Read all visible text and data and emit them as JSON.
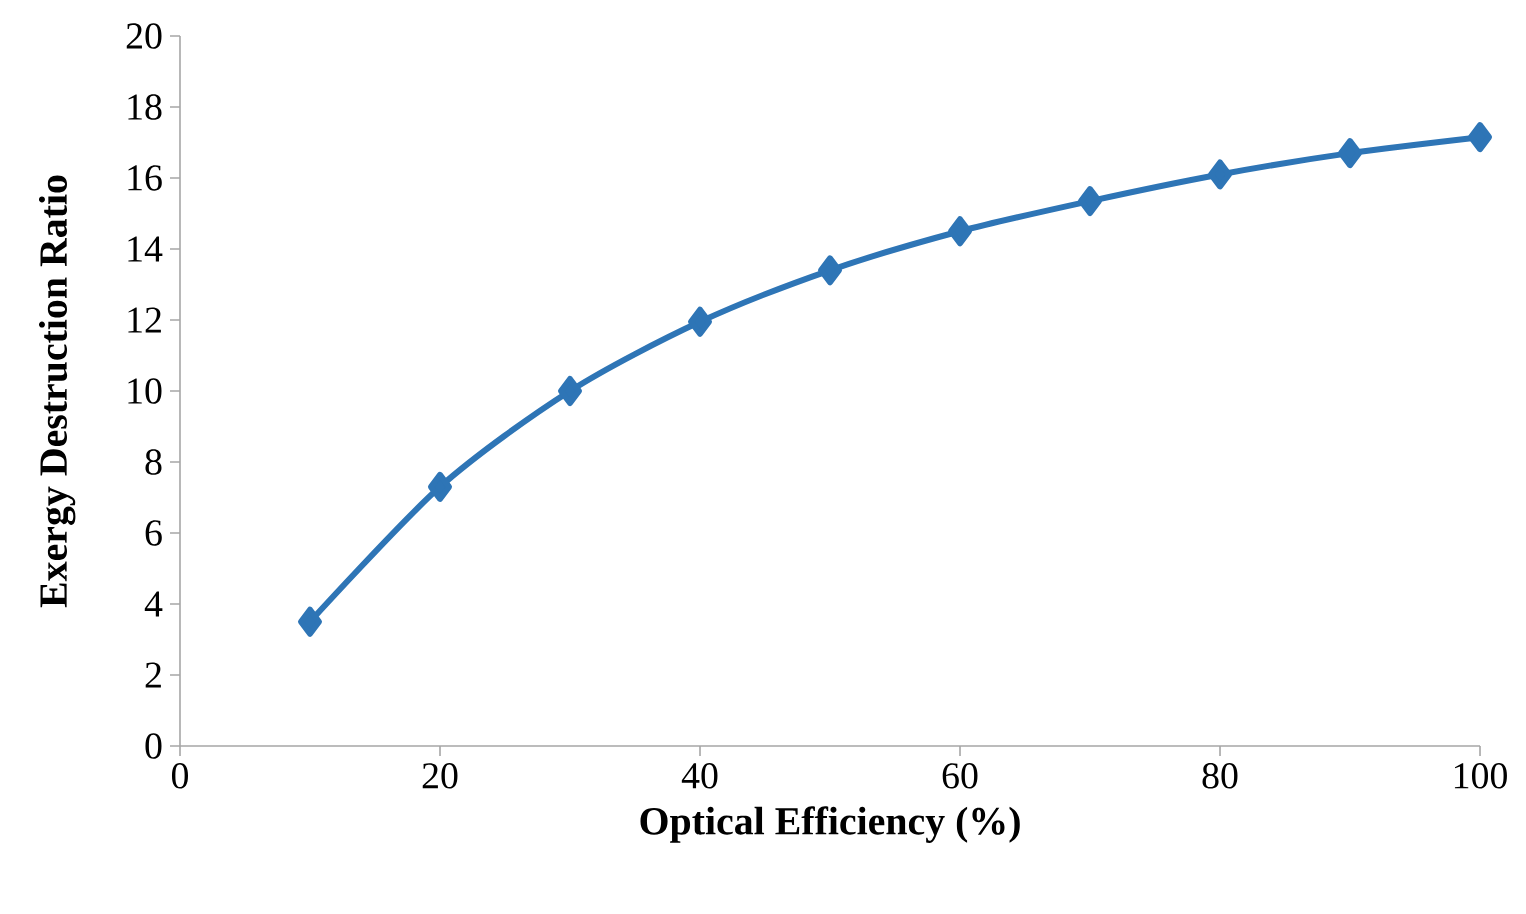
{
  "chart_data": {
    "type": "line",
    "xlabel": "Optical Efficiency (%)",
    "ylabel": "Exergy Destruction Ratio",
    "x": [
      10,
      20,
      30,
      40,
      50,
      60,
      70,
      80,
      90,
      100
    ],
    "series": [
      {
        "color": "#2e75b6",
        "values": [
          3.5,
          7.3,
          10.0,
          11.95,
          13.4,
          14.5,
          15.35,
          16.1,
          16.7,
          17.15
        ]
      }
    ],
    "xlim": [
      0,
      100
    ],
    "xticks": [
      0,
      20,
      40,
      60,
      80,
      100
    ],
    "ylim": [
      0,
      20
    ],
    "yticks": [
      0,
      2,
      4,
      6,
      8,
      10,
      12,
      14,
      16,
      18,
      20
    ],
    "grid": false,
    "marker": "diamond",
    "line_style": "solid"
  }
}
